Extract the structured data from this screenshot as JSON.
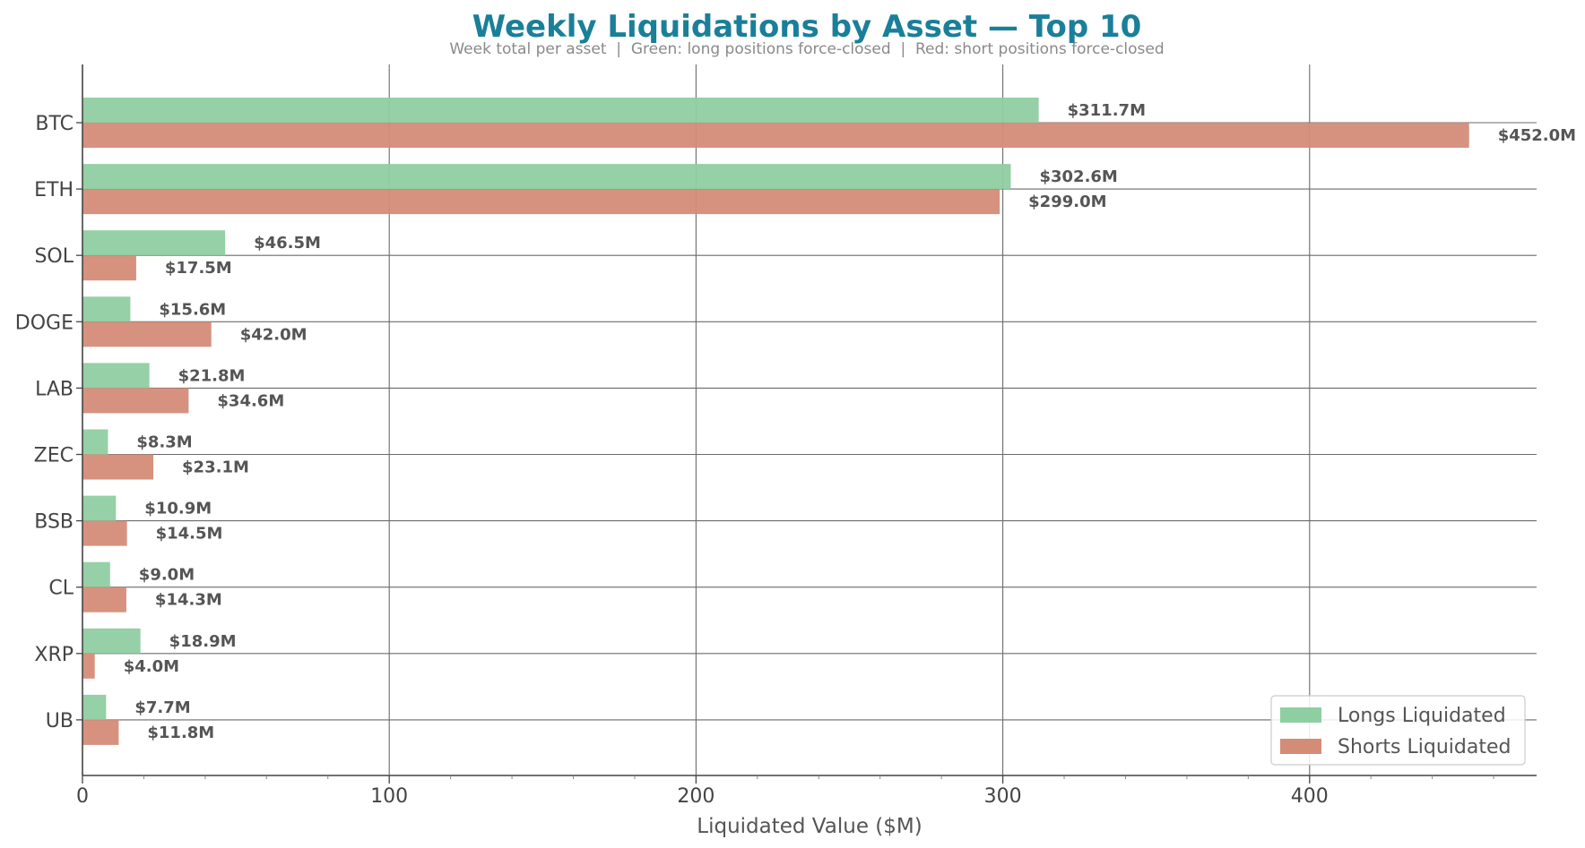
{
  "chart_data": {
    "type": "bar",
    "orientation": "horizontal",
    "title": "Weekly Liquidations by Asset — Top 10",
    "subtitle": "Week total per asset  |  Green: long positions force-closed  |  Red: short positions force-closed",
    "xlabel": "Liquidated Value ($M)",
    "ylabel": "",
    "xlim": [
      0,
      474
    ],
    "x_ticks": [
      0,
      100,
      200,
      300,
      400
    ],
    "grid": true,
    "legend_position": "bottom-right",
    "categories": [
      "BTC",
      "ETH",
      "SOL",
      "DOGE",
      "LAB",
      "ZEC",
      "BSB",
      "CL",
      "XRP",
      "UB"
    ],
    "series": [
      {
        "name": "Longs Liquidated",
        "color": "#8fcea1",
        "values": [
          311.7,
          302.6,
          46.5,
          15.6,
          21.8,
          8.3,
          10.9,
          9.0,
          18.9,
          7.7
        ],
        "labels": [
          "$311.7M",
          "$302.6M",
          "$46.5M",
          "$15.6M",
          "$21.8M",
          "$8.3M",
          "$10.9M",
          "$9.0M",
          "$18.9M",
          "$7.7M"
        ]
      },
      {
        "name": "Shorts Liquidated",
        "color": "#d48c77",
        "values": [
          452.0,
          299.0,
          17.5,
          42.0,
          34.6,
          23.1,
          14.5,
          14.3,
          4.0,
          11.8
        ],
        "labels": [
          "$452.0M",
          "$299.0M",
          "$17.5M",
          "$42.0M",
          "$34.6M",
          "$23.1M",
          "$14.5M",
          "$14.3M",
          "$4.0M",
          "$11.8M"
        ]
      }
    ]
  },
  "colors": {
    "title": "#1a7f99",
    "grid": "#6b6b6b",
    "axis": "#444444"
  }
}
